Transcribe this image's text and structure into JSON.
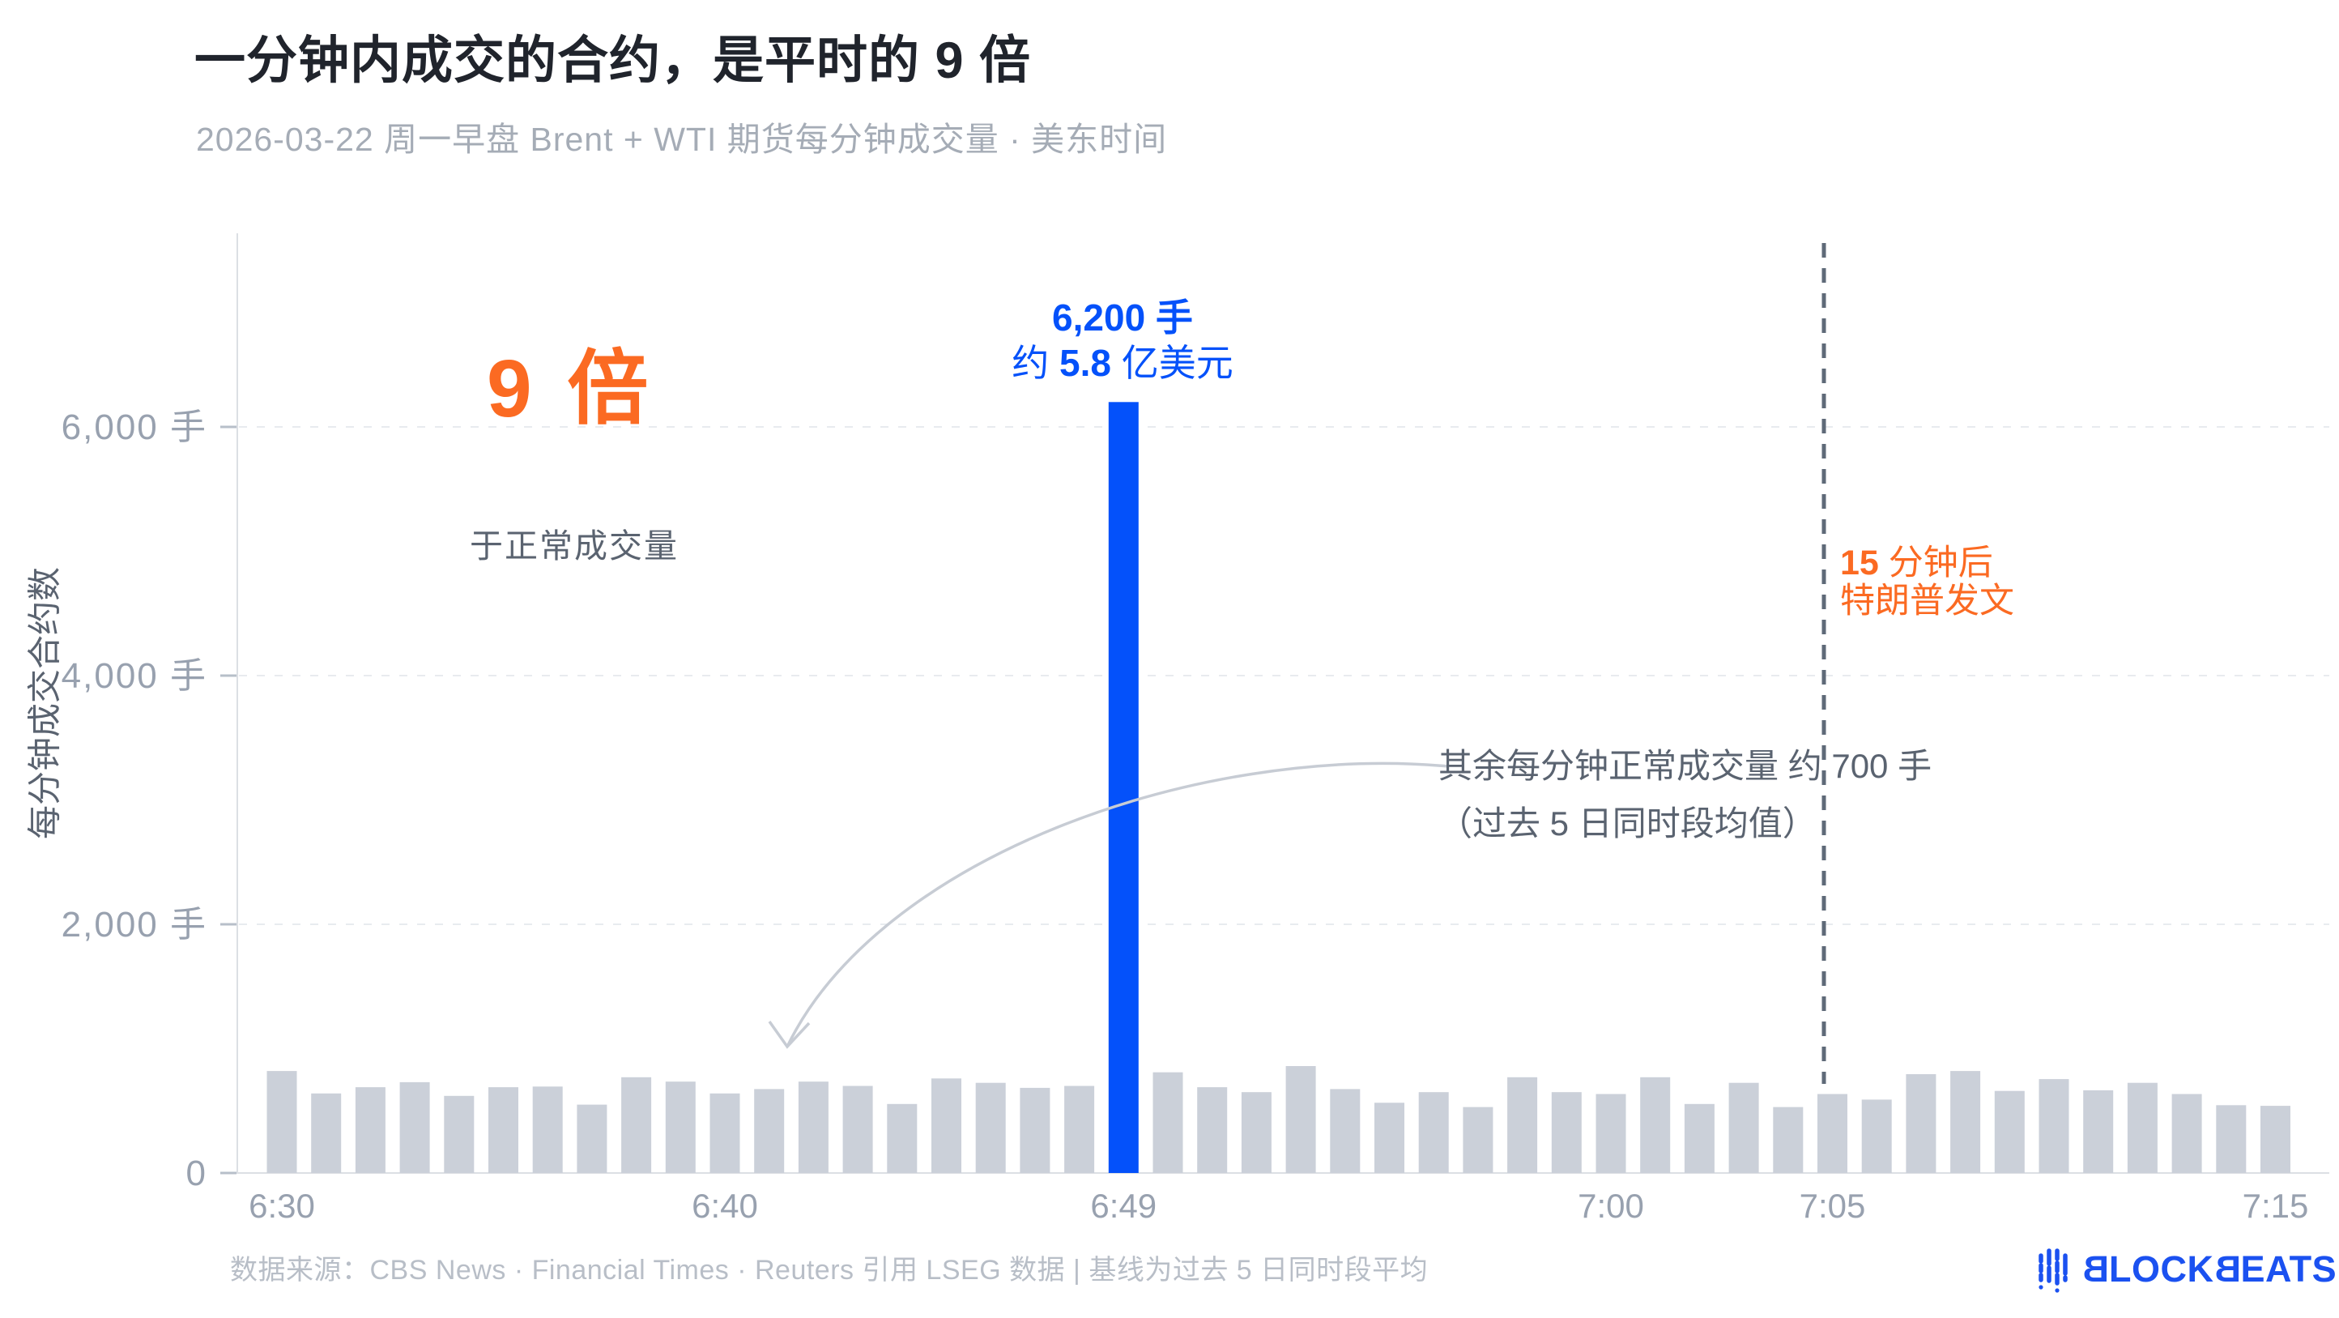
{
  "header": {
    "title": "一分钟内成交的合约，是平时的 9 倍",
    "subtitle": "2026-03-22 周一早盘 Brent + WTI 期货每分钟成交量 · 美东时间"
  },
  "annotations": {
    "peak": {
      "line1": "6,200 手",
      "line2_pre": "约 ",
      "line2_bold": "5.8",
      "line2_post": " 亿美元"
    },
    "multiplier": {
      "big": "9 倍",
      "sub": "于正常成交量"
    },
    "normal": {
      "line1": "其余每分钟正常成交量 约 700 手",
      "line2": "（过去 5 日同时段均值）"
    },
    "event": {
      "line1_bold": "15",
      "line1_rest": " 分钟后",
      "line2": "特朗普发文"
    }
  },
  "footer": {
    "source": "数据来源：CBS News · Financial Times · Reuters 引用 LSEG 数据 | 基线为过去 5 日同时段平均"
  },
  "logo": {
    "b1": "B",
    "part1": "LOCK",
    "b2": "B",
    "part2": "EATS",
    "full_name": "BLOCKBEATS"
  },
  "colors": {
    "bar": "#cbd0d9",
    "highlight_bar": "#0451fa",
    "blue_text": "#0451fa",
    "orange": "#fb6a22",
    "title_text": "#20242c",
    "subtitle_text": "#a5acb6",
    "gray_text": "#5a6370",
    "tick_text": "#98a1af",
    "grid_line": "#e8ebef",
    "axis_line": "#dcdfe4",
    "tick_mark": "#b7bfc9",
    "event_line": "#5f6a78",
    "arrow": "#c7ccd4",
    "footer_text": "#b8bec7",
    "logo_blue": "#1b51f0"
  },
  "chart_data": {
    "type": "bar",
    "title": "一分钟内成交的合约，是平时的 9 倍",
    "subtitle": "2026-03-22 周一早盘 Brent + WTI 期货每分钟成交量 · 美东时间",
    "xlabel": "",
    "ylabel": "每分钟成交合约数",
    "unit": "手",
    "ylim": [
      0,
      7500
    ],
    "grid": "dashed-horizontal",
    "legend_position": "none",
    "categories": [
      "6:30",
      "6:31",
      "6:32",
      "6:33",
      "6:34",
      "6:35",
      "6:36",
      "6:37",
      "6:38",
      "6:39",
      "6:40",
      "6:41",
      "6:42",
      "6:43",
      "6:44",
      "6:45",
      "6:46",
      "6:47",
      "6:48",
      "6:49",
      "6:50",
      "6:51",
      "6:52",
      "6:53",
      "6:54",
      "6:55",
      "6:56",
      "6:57",
      "6:58",
      "6:59",
      "7:00",
      "7:01",
      "7:02",
      "7:03",
      "7:04",
      "7:05",
      "7:06",
      "7:07",
      "7:08",
      "7:09",
      "7:10",
      "7:11",
      "7:12",
      "7:13",
      "7:14",
      "7:15"
    ],
    "values": [
      820,
      640,
      690,
      730,
      620,
      690,
      695,
      550,
      770,
      735,
      640,
      675,
      735,
      700,
      555,
      760,
      725,
      685,
      700,
      6200,
      810,
      690,
      650,
      860,
      675,
      565,
      650,
      530,
      770,
      650,
      635,
      770,
      555,
      725,
      530,
      635,
      590,
      795,
      820,
      660,
      755,
      665,
      725,
      635,
      545,
      540
    ],
    "highlight": {
      "index": 19,
      "label": "6:49",
      "value": 6200,
      "value_label": "6,200 手",
      "usd_label": "约 5.8 亿美元"
    },
    "normal_baseline": 700,
    "xticks": [
      {
        "index": 0,
        "label": "6:30"
      },
      {
        "index": 10,
        "label": "6:40"
      },
      {
        "index": 19,
        "label": "6:49"
      },
      {
        "index": 30,
        "label": "7:00"
      },
      {
        "index": 35,
        "label": "7:05"
      },
      {
        "index": 45,
        "label": "7:15"
      }
    ],
    "yticks": [
      {
        "value": 0,
        "label": "0"
      },
      {
        "value": 2000,
        "label": "2,000 手"
      },
      {
        "value": 4000,
        "label": "4,000 手"
      },
      {
        "value": 6000,
        "label": "6,000 手"
      }
    ],
    "event_line": {
      "at_label": "7:05",
      "annotation": "15 分钟后 特朗普发文"
    }
  }
}
